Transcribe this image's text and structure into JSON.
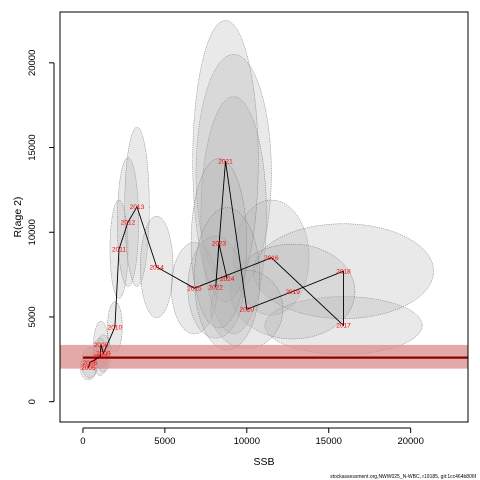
{
  "chart_data": {
    "type": "scatter",
    "title": "",
    "xlabel": "SSB",
    "ylabel": "R(age 2)",
    "xlim": [
      -1400,
      23500
    ],
    "ylim": [
      -1200,
      23000
    ],
    "xticks": [
      0,
      5000,
      10000,
      15000,
      20000
    ],
    "yticks": [
      0,
      5000,
      10000,
      15000,
      20000
    ],
    "grid": false,
    "legend": "none",
    "reference_line": {
      "y": 2600,
      "band": [
        1950,
        3350
      ],
      "color": "#8b0000",
      "band_color": "#d98c8c"
    },
    "colors": {
      "path": "#000000",
      "labels": "#ff0000",
      "ellipse_fill": "#b0b0b0",
      "ellipse_stroke": "#666666"
    },
    "series": [
      {
        "points": [
          {
            "year": "2005",
            "x": 350,
            "y": 1050,
            "sx": 180,
            "sy": 350
          },
          {
            "year": "2006",
            "x": 500,
            "y": 1200,
            "sx": 200,
            "sy": 400
          },
          {
            "year": "2007",
            "x": 900,
            "y": 1550,
            "sx": 250,
            "sy": 500
          },
          {
            "year": "2008",
            "x": 1000,
            "y": 1700,
            "sx": 250,
            "sy": 550
          },
          {
            "year": "2009",
            "x": 1100,
            "y": 1900,
            "sx": 300,
            "sy": 600
          },
          {
            "year": "2010",
            "x": 1400,
            "y": 2200,
            "sx": 300,
            "sy": 700
          },
          {
            "year": "2011",
            "x": 2200,
            "y": 4500,
            "sx": 500,
            "sy": 1200
          },
          {
            "year": "2012",
            "x": 2800,
            "y": 5100,
            "sx": 600,
            "sy": 1400
          },
          {
            "year": "2013",
            "x": 3200,
            "y": 5600,
            "sx": 650,
            "sy": 1600
          },
          {
            "year": "2014",
            "x": 4500,
            "y": 3400,
            "sx": 1000,
            "sy": 1100
          },
          {
            "year": "2015",
            "x": 6800,
            "y": 2700,
            "sx": 1400,
            "sy": 1000
          },
          {
            "year": "2016",
            "x": 11500,
            "y": 3600,
            "sx": 2200,
            "sy": 1300
          },
          {
            "year": "2017",
            "x": 15800,
            "y": 1750,
            "sx": 3300,
            "sy": 700
          },
          {
            "year": "2018",
            "x": 15800,
            "y": 3300,
            "sx": 3800,
            "sy": 1400
          },
          {
            "year": "2019",
            "x": 12800,
            "y": 2600,
            "sx": 3000,
            "sy": 1100
          },
          {
            "year": "2020",
            "x": 9500,
            "y": 2000,
            "sx": 1800,
            "sy": 900
          },
          {
            "year": "2021",
            "x": 8600,
            "y": 7200,
            "sx": 1700,
            "sy": 4000
          },
          {
            "year": "2022",
            "x": 8100,
            "y": 2700,
            "sx": 1300,
            "sy": 1100
          },
          {
            "year": "2023",
            "x": 8400,
            "y": 4300,
            "sx": 1200,
            "sy": 1300
          },
          {
            "year": "2024",
            "x": 8300,
            "y": 3000,
            "sx": 1000,
            "sy": 1200
          }
        ]
      }
    ],
    "label_overrides": {
      "2005": {
        "x": 330,
        "y": 2000
      },
      "2006": {
        "x": 420,
        "y": 2300
      },
      "2007": {
        "x": 1050,
        "y": 2650
      },
      "2008": {
        "x": 1100,
        "y": 3350
      },
      "2009": {
        "x": 1250,
        "y": 2850
      },
      "2010": {
        "x": 1950,
        "y": 4400
      },
      "2011": {
        "x": 2200,
        "y": 9000
      },
      "2012": {
        "x": 2750,
        "y": 10600
      },
      "2013": {
        "x": 3300,
        "y": 11500
      },
      "2014": {
        "x": 4500,
        "y": 7950
      },
      "2015": {
        "x": 6800,
        "y": 6700
      },
      "2016": {
        "x": 11500,
        "y": 8500
      },
      "2017": {
        "x": 15900,
        "y": 4500
      },
      "2018": {
        "x": 15900,
        "y": 7700
      },
      "2019": {
        "x": 12800,
        "y": 6500
      },
      "2020": {
        "x": 10000,
        "y": 5450
      },
      "2021": {
        "x": 8700,
        "y": 14200
      },
      "2022": {
        "x": 8100,
        "y": 6750
      },
      "2023": {
        "x": 8300,
        "y": 9350
      },
      "2024": {
        "x": 8800,
        "y": 7250
      }
    },
    "path_points": [
      {
        "year": "2005",
        "x": 330,
        "y": 2000
      },
      {
        "year": "2006",
        "x": 420,
        "y": 2300
      },
      {
        "year": "2007",
        "x": 1050,
        "y": 2650
      },
      {
        "year": "2008",
        "x": 1100,
        "y": 3350
      },
      {
        "year": "2009",
        "x": 1250,
        "y": 2850
      },
      {
        "year": "2010",
        "x": 1950,
        "y": 4400
      },
      {
        "year": "2011",
        "x": 2200,
        "y": 9000
      },
      {
        "year": "2012",
        "x": 2750,
        "y": 10600
      },
      {
        "year": "2013",
        "x": 3300,
        "y": 11500
      },
      {
        "year": "2014",
        "x": 4500,
        "y": 7950
      },
      {
        "year": "2015",
        "x": 6800,
        "y": 6700
      },
      {
        "year": "2016",
        "x": 11500,
        "y": 8500
      },
      {
        "year": "2017",
        "x": 15900,
        "y": 4500
      },
      {
        "year": "2018",
        "x": 15900,
        "y": 7700
      },
      {
        "year": "2019",
        "x": 12800,
        "y": 6500
      },
      {
        "year": "2020",
        "x": 10000,
        "y": 5450
      },
      {
        "year": "2021",
        "x": 8700,
        "y": 14200
      },
      {
        "year": "2022",
        "x": 8100,
        "y": 6750
      },
      {
        "year": "2023",
        "x": 8300,
        "y": 9350
      },
      {
        "year": "2024",
        "x": 8800,
        "y": 7250
      }
    ],
    "uncertainty_ellipses": [
      {
        "year": "2005",
        "cx": 330,
        "cy": 2000,
        "rx": 500,
        "ry": 700
      },
      {
        "year": "2006",
        "cx": 420,
        "cy": 2300,
        "rx": 500,
        "ry": 900
      },
      {
        "year": "2007",
        "cx": 1050,
        "cy": 2650,
        "rx": 450,
        "ry": 1100
      },
      {
        "year": "2008",
        "cx": 1100,
        "cy": 3350,
        "rx": 450,
        "ry": 1400
      },
      {
        "year": "2009",
        "cx": 1250,
        "cy": 2850,
        "rx": 450,
        "ry": 1100
      },
      {
        "year": "2010",
        "cx": 1950,
        "cy": 4400,
        "rx": 450,
        "ry": 1500
      },
      {
        "year": "2011",
        "cx": 2200,
        "cy": 9000,
        "rx": 550,
        "ry": 2900
      },
      {
        "year": "2012",
        "cx": 2750,
        "cy": 10600,
        "rx": 650,
        "ry": 3800
      },
      {
        "year": "2013",
        "cx": 3300,
        "cy": 11500,
        "rx": 750,
        "ry": 4700
      },
      {
        "year": "2014",
        "cx": 4500,
        "cy": 7950,
        "rx": 1000,
        "ry": 3000
      },
      {
        "year": "2015",
        "cx": 6800,
        "cy": 6700,
        "rx": 1400,
        "ry": 2700
      },
      {
        "year": "2016",
        "cx": 11500,
        "cy": 8500,
        "rx": 2300,
        "ry": 3400
      },
      {
        "year": "2017",
        "cx": 15900,
        "cy": 4500,
        "rx": 4800,
        "ry": 1700
      },
      {
        "year": "2018",
        "cx": 15900,
        "cy": 7700,
        "rx": 5500,
        "ry": 2800
      },
      {
        "year": "2019",
        "cx": 12800,
        "cy": 6500,
        "rx": 3800,
        "ry": 2800
      },
      {
        "year": "2020",
        "cx": 10000,
        "cy": 5450,
        "rx": 2200,
        "ry": 2300
      },
      {
        "year": "2021",
        "cx": 8700,
        "cy": 14200,
        "rx": 2000,
        "ry": 8300
      },
      {
        "year": "2022",
        "cx": 8100,
        "cy": 6750,
        "rx": 1700,
        "ry": 3000
      },
      {
        "year": "2023",
        "cx": 8300,
        "cy": 9350,
        "rx": 1700,
        "ry": 5000
      },
      {
        "year": "2024",
        "cx": 8800,
        "cy": 7250,
        "rx": 2000,
        "ry": 4200
      }
    ],
    "extra_ellipses": [
      {
        "cx": 9200,
        "cy": 13500,
        "rx": 2300,
        "ry": 7000
      },
      {
        "cx": 9200,
        "cy": 11000,
        "rx": 2000,
        "ry": 7000
      }
    ]
  },
  "footer": {
    "text": "stockassessment.org,NWW025_N-WBC, r19185, git:1cc464b806f"
  }
}
